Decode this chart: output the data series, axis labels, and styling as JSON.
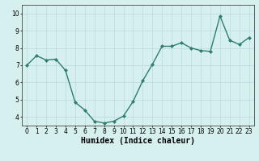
{
  "x": [
    0,
    1,
    2,
    3,
    4,
    5,
    6,
    7,
    8,
    9,
    10,
    11,
    12,
    13,
    14,
    15,
    16,
    17,
    18,
    19,
    20,
    21,
    22,
    23
  ],
  "y": [
    7.0,
    7.55,
    7.3,
    7.35,
    6.7,
    4.85,
    4.4,
    3.75,
    3.65,
    3.75,
    4.05,
    4.9,
    6.1,
    7.05,
    8.1,
    8.1,
    8.3,
    8.0,
    7.85,
    7.8,
    9.85,
    8.45,
    8.2,
    8.6
  ],
  "line_color": "#2e7d6e",
  "marker": "D",
  "marker_size": 2.0,
  "bg_color": "#d6f0f0",
  "grid_color": "#c0dede",
  "xlabel": "Humidex (Indice chaleur)",
  "xlim": [
    -0.5,
    23.5
  ],
  "ylim": [
    3.5,
    10.5
  ],
  "yticks": [
    4,
    5,
    6,
    7,
    8,
    9,
    10
  ],
  "xticks": [
    0,
    1,
    2,
    3,
    4,
    5,
    6,
    7,
    8,
    9,
    10,
    11,
    12,
    13,
    14,
    15,
    16,
    17,
    18,
    19,
    20,
    21,
    22,
    23
  ],
  "tick_label_fontsize": 5.5,
  "xlabel_fontsize": 7.0,
  "line_width": 1.0
}
